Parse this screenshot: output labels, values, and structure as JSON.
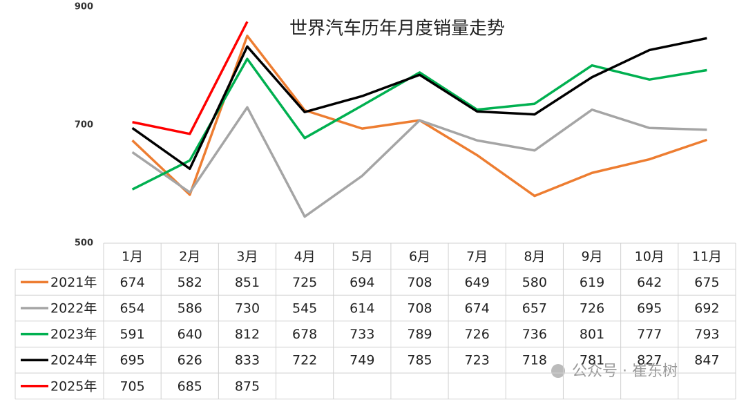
{
  "chart_data": {
    "type": "line",
    "title": "世界汽车历年月度销量走势",
    "categories": [
      "1月",
      "2月",
      "3月",
      "4月",
      "5月",
      "6月",
      "7月",
      "8月",
      "9月",
      "10月",
      "11月"
    ],
    "series": [
      {
        "name": "2021年",
        "color": "#ed7d31",
        "values": [
          674,
          582,
          851,
          725,
          694,
          708,
          649,
          580,
          619,
          642,
          675
        ]
      },
      {
        "name": "2022年",
        "color": "#a5a5a5",
        "values": [
          654,
          586,
          730,
          545,
          614,
          708,
          674,
          657,
          726,
          695,
          692
        ]
      },
      {
        "name": "2023年",
        "color": "#00b050",
        "values": [
          591,
          640,
          812,
          678,
          733,
          789,
          726,
          736,
          801,
          777,
          793
        ]
      },
      {
        "name": "2024年",
        "color": "#000000",
        "values": [
          695,
          626,
          833,
          722,
          749,
          785,
          723,
          718,
          781,
          827,
          847
        ]
      },
      {
        "name": "2025年",
        "color": "#ff0000",
        "values": [
          705,
          685,
          875,
          null,
          null,
          null,
          null,
          null,
          null,
          null,
          null
        ]
      }
    ],
    "ylim": [
      500,
      900
    ],
    "yticks": [
      500,
      700,
      900
    ],
    "grid": false,
    "watermark": "公众号 · 崔东树"
  }
}
